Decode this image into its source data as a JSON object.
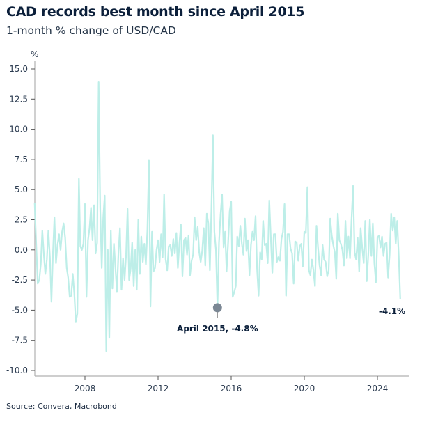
{
  "header": {
    "title": "CAD records best month since April 2015",
    "subtitle": "1-month % change of USD/CAD"
  },
  "footer": {
    "source": "Source: Convera, Macrobond"
  },
  "colors": {
    "line": "#bdeee8",
    "marker": "#7b8794",
    "text": "#0b1f3a",
    "axis": "#b0b0b0"
  },
  "chart_data": {
    "type": "line",
    "title": "CAD records best month since April 2015",
    "subtitle": "1-month % change of USD/CAD",
    "ylabel": "%",
    "xlabel": "",
    "ylim": [
      -10,
      15
    ],
    "yticks": [
      "15.0",
      "12.5",
      "10.0",
      "7.5",
      "5.0",
      "2.5",
      "0.0",
      "-2.5",
      "-5.0",
      "-7.5",
      "-10.0"
    ],
    "xticks": [
      "2008",
      "2012",
      "2016",
      "2020",
      "2024"
    ],
    "grid": false,
    "legend": "none",
    "annotations": [
      {
        "label": "April 2015, -4.8%",
        "x": "2015-04",
        "y": -4.8
      },
      {
        "label": "-4.1%",
        "x": "2025-04",
        "y": -4.1
      }
    ],
    "series": [
      {
        "values": {
          "2005": [
            3.9,
            0.5,
            -2.8,
            -2.5,
            -1.2,
            1.6,
            -0.3,
            -2.0,
            -0.8
          ],
          "2006": [
            1.6,
            -0.6,
            -4.3,
            -0.2,
            2.7,
            -1.1,
            0.4,
            1.3,
            0.0,
            1.5,
            2.2,
            1.0
          ],
          "2007": [
            -1.5,
            -2.3,
            -3.9,
            -3.8,
            -2.0,
            -3.6,
            -6.0,
            -5.3,
            5.9,
            0.3,
            0.0,
            0.5
          ],
          "2008": [
            3.8,
            -3.9,
            0.8,
            1.8,
            3.5,
            0.8,
            3.7,
            -0.3,
            0.6,
            13.9,
            3.5,
            -1.5
          ],
          "2009": [
            2.7,
            4.5,
            -8.4,
            0.0,
            -7.3,
            1.6,
            -3.2,
            0.5,
            -1.5,
            -3.5,
            -0.3,
            1.8
          ],
          "2010": [
            -3.3,
            -0.7,
            -2.5,
            -0.4,
            3.4,
            -2.5,
            -1.6,
            0.6,
            -3.0,
            0.0,
            -3.3,
            2.5
          ],
          "2011": [
            -2.0,
            1.1,
            -1.0,
            0.5,
            -1.2,
            1.7,
            7.4,
            -4.7,
            1.5,
            -1.8,
            -1.5,
            0.0
          ],
          "2012": [
            0.8,
            -1.0,
            1.3,
            -0.6,
            4.6,
            -0.8,
            -1.7,
            0.3,
            0.4,
            -0.5,
            0.9,
            -0.3
          ],
          "2013": [
            1.4,
            -1.5,
            0.5,
            2.1,
            -2.2,
            0.8,
            1.0,
            -0.4,
            1.2,
            -2.1,
            -0.9,
            -0.4
          ],
          "2014": [
            2.7,
            0.8,
            1.9,
            -0.2,
            -1.0,
            -0.1,
            1.8,
            -1.3,
            3.0,
            2.2,
            -1.7,
            3.3
          ],
          "2015": [
            9.5,
            1.5,
            0.0,
            -4.8,
            0.6,
            2.9,
            4.6,
            0.2,
            1.5,
            -1.8,
            0.6,
            3.2
          ],
          "2016": [
            4.0,
            -3.9,
            -3.5,
            -3.0,
            1.1,
            0.3,
            2.0,
            0.5,
            -0.4,
            2.6,
            -0.1,
            0.8
          ],
          "2017": [
            -2.1,
            0.4,
            1.5,
            0.8,
            2.8,
            -1.6,
            -3.8,
            -0.2,
            -0.8,
            2.4,
            0.4,
            0.5
          ],
          "2018": [
            -1.1,
            4.1,
            1.0,
            -1.9,
            1.3,
            1.3,
            -1.0,
            -0.6,
            -0.9,
            0.9,
            1.5,
            3.8
          ],
          "2019": [
            -3.8,
            1.3,
            1.3,
            0.1,
            -0.3,
            -2.8,
            0.7,
            0.6,
            -0.9,
            0.3,
            0.5,
            -1.4
          ],
          "2020": [
            1.5,
            1.4,
            5.2,
            -1.7,
            -2.1,
            -0.8,
            -1.7,
            -3.0,
            2.0,
            0.2,
            -1.3,
            -2.1
          ],
          "2021": [
            0.4,
            -0.8,
            -1.0,
            -2.2,
            -1.7,
            2.6,
            1.2,
            0.4,
            -0.2,
            -2.4,
            3.0,
            0.8
          ],
          "2022": [
            0.5,
            0.0,
            -1.3,
            2.4,
            -0.7,
            1.1,
            -0.7,
            2.5,
            5.3,
            -0.2,
            -0.8,
            1.0
          ],
          "2023": [
            -1.8,
            1.8,
            0.2,
            -1.1,
            2.4,
            -2.6,
            -0.4,
            2.5,
            -0.5,
            2.2,
            -1.1,
            -2.7
          ],
          "2024": [
            1.0,
            1.2,
            0.2,
            1.1,
            -0.5,
            0.5,
            0.6,
            -2.3,
            -0.4,
            3.0,
            1.6,
            2.7
          ],
          "2025": [
            0.5,
            2.4,
            -0.5,
            -4.1
          ]
        },
        "first_month": "2005-04"
      }
    ]
  }
}
